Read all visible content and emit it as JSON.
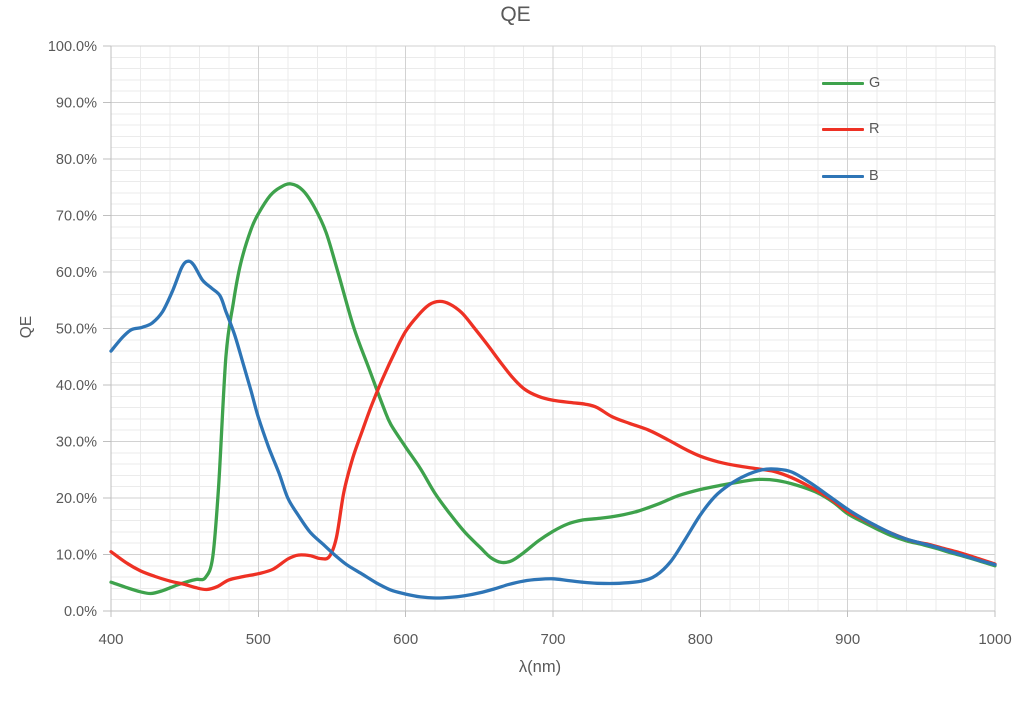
{
  "chart_data": {
    "type": "line",
    "title": "QE",
    "xlabel": "λ(nm)",
    "ylabel": "QE",
    "xlim": [
      400,
      1000
    ],
    "ylim_percent": [
      0,
      100
    ],
    "x_ticks": [
      "400",
      "500",
      "600",
      "700",
      "800",
      "900",
      "1000"
    ],
    "x_tick_values": [
      400,
      500,
      600,
      700,
      800,
      900,
      1000
    ],
    "y_tick_labels": [
      "0.0%",
      "10.0%",
      "20.0%",
      "30.0%",
      "40.0%",
      "50.0%",
      "60.0%",
      "70.0%",
      "80.0%",
      "90.0%",
      "100.0%"
    ],
    "y_tick_values": [
      0,
      10,
      20,
      30,
      40,
      50,
      60,
      70,
      80,
      90,
      100
    ],
    "x_minor_step": 20,
    "y_minor_step": 2,
    "grid": {
      "major": true,
      "minor": true
    },
    "legend": {
      "position": "top-right-inside",
      "entries": [
        "G",
        "R",
        "B"
      ]
    },
    "colors": {
      "G": "#3EA24C",
      "R": "#EE3124",
      "B": "#2E75B6",
      "grid_major": "#D2D2D2",
      "grid_minor": "#EBEBEB",
      "axis": "#BFBFBF",
      "text": "#595959"
    },
    "series": [
      {
        "name": "G",
        "color": "#3EA24C",
        "x": [
          400,
          410,
          420,
          427,
          435,
          445,
          452,
          458,
          464,
          469,
          473,
          478,
          483,
          488,
          495,
          500,
          508,
          515,
          522,
          530,
          538,
          546,
          554,
          565,
          575,
          585,
          590,
          600,
          610,
          620,
          630,
          640,
          650,
          658,
          665,
          672,
          680,
          690,
          700,
          710,
          720,
          732,
          745,
          758,
          772,
          785,
          800,
          815,
          828,
          840,
          852,
          865,
          878,
          890,
          900,
          910,
          920,
          930,
          940,
          950,
          960,
          970,
          980,
          990,
          1000
        ],
        "y_percent": [
          5.1,
          4.2,
          3.4,
          3.1,
          3.6,
          4.6,
          5.2,
          5.6,
          5.9,
          9.5,
          22,
          45,
          54.5,
          61.5,
          67.5,
          70.3,
          73.5,
          75.0,
          75.6,
          74.5,
          71.5,
          67.0,
          60.0,
          50.0,
          43.0,
          36.0,
          33.0,
          29.0,
          25.2,
          20.8,
          17.2,
          14.0,
          11.4,
          9.4,
          8.6,
          8.9,
          10.3,
          12.4,
          14.1,
          15.4,
          16.1,
          16.4,
          16.9,
          17.7,
          19.0,
          20.4,
          21.5,
          22.3,
          22.9,
          23.3,
          23.1,
          22.3,
          21.1,
          19.3,
          17.2,
          15.8,
          14.5,
          13.3,
          12.4,
          11.8,
          11.1,
          10.3,
          9.6,
          8.8,
          8.0
        ]
      },
      {
        "name": "R",
        "color": "#EE3124",
        "x": [
          400,
          410,
          420,
          430,
          440,
          450,
          458,
          465,
          472,
          480,
          490,
          500,
          510,
          520,
          527,
          535,
          542,
          548,
          553,
          558,
          564,
          570,
          577,
          585,
          593,
          600,
          608,
          616,
          623,
          630,
          638,
          646,
          655,
          665,
          673,
          681,
          690,
          700,
          712,
          722,
          730,
          740,
          752,
          765,
          778,
          790,
          800,
          812,
          825,
          838,
          850,
          862,
          875,
          888,
          900,
          912,
          925,
          935,
          945,
          955,
          965,
          975,
          985,
          1000
        ],
        "y_percent": [
          10.5,
          8.6,
          7.1,
          6.1,
          5.3,
          4.7,
          4.1,
          3.8,
          4.3,
          5.5,
          6.1,
          6.6,
          7.4,
          9.2,
          9.9,
          9.8,
          9.3,
          9.6,
          13.0,
          21.0,
          27.0,
          31.5,
          36.5,
          41.5,
          46.0,
          49.5,
          52.2,
          54.2,
          54.8,
          54.3,
          52.8,
          50.3,
          47.3,
          43.8,
          41.2,
          39.2,
          38.0,
          37.3,
          36.9,
          36.6,
          36.0,
          34.4,
          33.2,
          32.0,
          30.3,
          28.6,
          27.4,
          26.4,
          25.7,
          25.2,
          24.7,
          23.6,
          21.9,
          19.9,
          17.6,
          16.0,
          14.3,
          13.2,
          12.3,
          11.8,
          11.1,
          10.4,
          9.6,
          8.3
        ]
      },
      {
        "name": "B",
        "color": "#2E75B6",
        "x": [
          400,
          408,
          414,
          421,
          428,
          435,
          442,
          448,
          452,
          456,
          462,
          468,
          474,
          478,
          484,
          490,
          495,
          500,
          507,
          514,
          520,
          527,
          535,
          544,
          552,
          560,
          570,
          580,
          590,
          600,
          610,
          620,
          630,
          640,
          650,
          660,
          670,
          680,
          690,
          700,
          710,
          720,
          730,
          745,
          760,
          770,
          780,
          790,
          800,
          810,
          820,
          830,
          842,
          852,
          862,
          874,
          886,
          900,
          910,
          920,
          930,
          940,
          950,
          960,
          970,
          980,
          990,
          1000
        ],
        "y_percent": [
          46.0,
          48.5,
          49.8,
          50.2,
          51.0,
          53.0,
          56.8,
          60.8,
          61.9,
          61.3,
          58.6,
          57.2,
          55.8,
          53.0,
          48.8,
          43.5,
          39.0,
          34.3,
          29.0,
          24.4,
          20.0,
          17.0,
          14.0,
          11.8,
          9.9,
          8.2,
          6.6,
          5.0,
          3.7,
          3.0,
          2.5,
          2.3,
          2.4,
          2.7,
          3.2,
          3.9,
          4.7,
          5.3,
          5.6,
          5.7,
          5.4,
          5.1,
          4.9,
          4.9,
          5.3,
          6.3,
          8.8,
          12.8,
          17.0,
          20.3,
          22.4,
          23.9,
          25.0,
          25.1,
          24.6,
          22.8,
          20.6,
          18.0,
          16.4,
          15.0,
          13.7,
          12.7,
          12.0,
          11.3,
          10.5,
          9.7,
          8.9,
          8.2
        ]
      }
    ]
  }
}
